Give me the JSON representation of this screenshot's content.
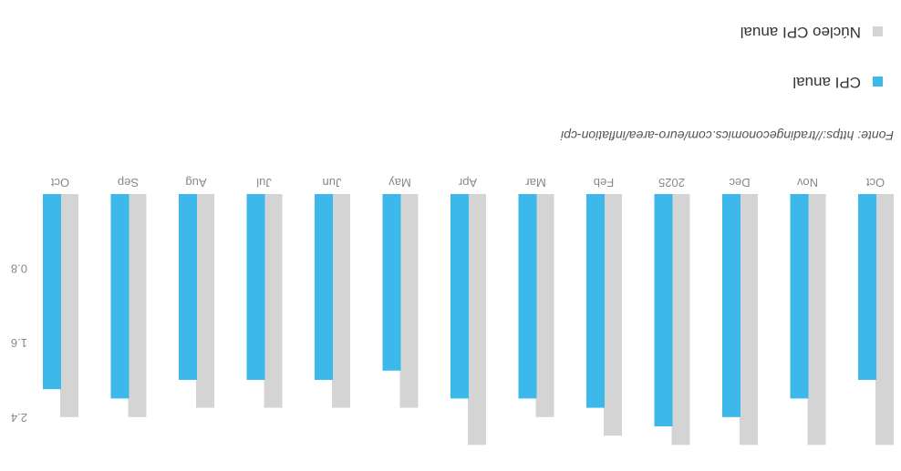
{
  "chart_data": {
    "type": "bar",
    "orientation": "vertical",
    "categories": [
      "Oct",
      "Nov",
      "Dec",
      "2025",
      "Feb",
      "Mar",
      "Apr",
      "May",
      "Jun",
      "Jul",
      "Aug",
      "Sep",
      "Oct"
    ],
    "series": [
      {
        "name": "CPI anual",
        "color": "#3db8ea",
        "values": [
          2.0,
          2.2,
          2.4,
          2.5,
          2.3,
          2.2,
          2.2,
          1.9,
          2.0,
          2.0,
          2.0,
          2.2,
          2.1
        ]
      },
      {
        "name": "Núcleo CPI anual",
        "color": "#d4d4d4",
        "values": [
          2.7,
          2.7,
          2.7,
          2.7,
          2.6,
          2.4,
          2.7,
          2.3,
          2.3,
          2.3,
          2.3,
          2.4,
          2.4
        ]
      }
    ],
    "yticks": [
      0.8,
      1.6,
      2.4
    ],
    "ytick_labels": [
      "0.8",
      "1.6",
      "2.4"
    ],
    "ylim": [
      0,
      2.75
    ],
    "source": "Fonte: https://tradingeconomics.com/euro-area/inflation-cpi",
    "legend_placement": "bottom-left"
  }
}
